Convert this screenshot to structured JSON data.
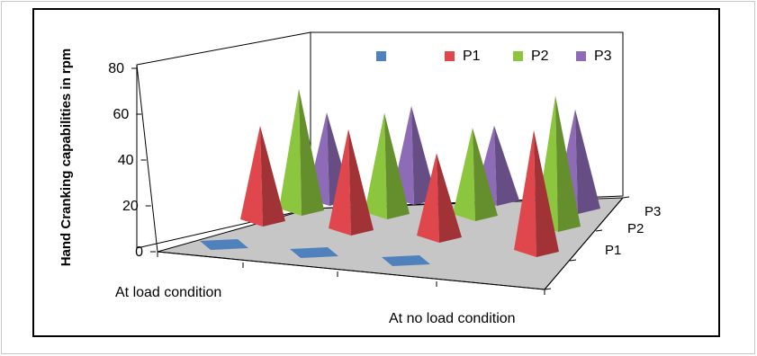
{
  "chart_data": {
    "type": "bar",
    "subtype": "3d-cone",
    "categories": [
      "At load condition",
      "",
      "At no load condition"
    ],
    "series_axis_labels": [
      "P1",
      "P2",
      "P3"
    ],
    "ylabel": "Hand Cranking capabilities in rpm",
    "ylim": [
      0,
      80
    ],
    "yticks": [
      0,
      20,
      40,
      60,
      80
    ],
    "legend_position": "top-right",
    "series": [
      {
        "name": "",
        "color": "#4f81bd",
        "values": [
          1,
          1,
          1
        ]
      },
      {
        "name": "P1",
        "color": "#e0474c",
        "values": [
          52,
          55,
          46
        ]
      },
      {
        "name": "P2",
        "color": "#8cc63f",
        "values": [
          66,
          55,
          48
        ]
      },
      {
        "name": "P3",
        "color": "#8e6bb7",
        "values": [
          48,
          51,
          41
        ]
      }
    ]
  }
}
